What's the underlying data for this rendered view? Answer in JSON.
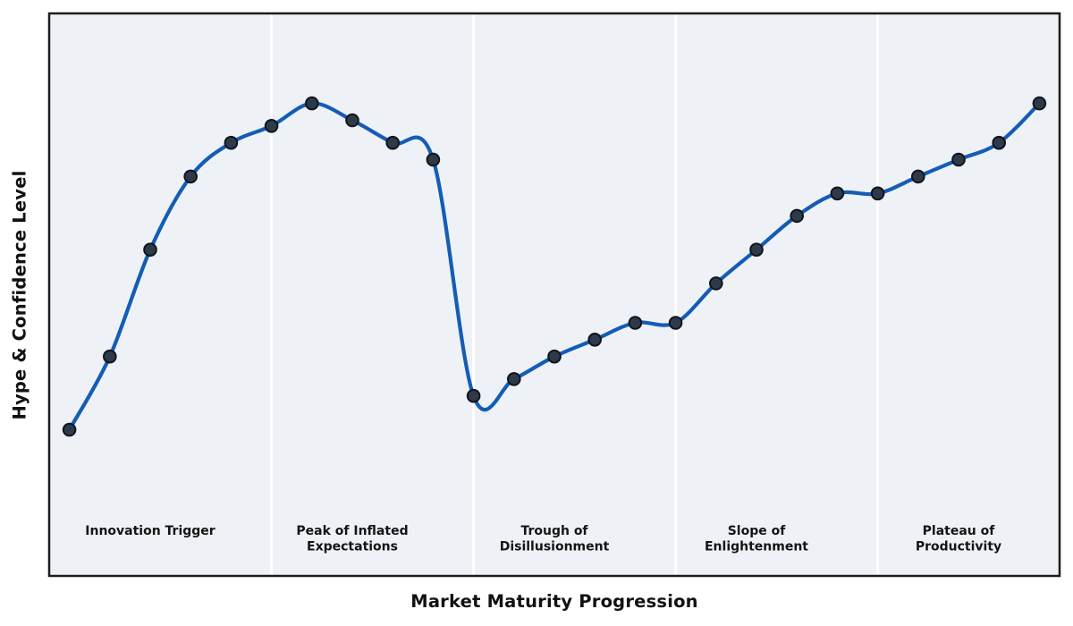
{
  "chart_data": {
    "type": "line",
    "title": "",
    "xlabel": "Market Maturity Progression",
    "ylabel": "Hype & Confidence Level",
    "x": [
      1,
      2,
      3,
      4,
      5,
      6,
      7,
      8,
      9,
      10,
      11,
      12,
      13,
      14,
      15,
      16,
      17,
      18,
      19,
      20,
      21,
      22,
      23,
      24,
      25
    ],
    "values": [
      26,
      39,
      58,
      71,
      77,
      80,
      84,
      81,
      77,
      74,
      32,
      35,
      39,
      42,
      45,
      45,
      52,
      58,
      64,
      68,
      68,
      71,
      74,
      77,
      84
    ],
    "xlim": [
      0.5,
      25.5
    ],
    "ylim": [
      0,
      100
    ],
    "grid": false,
    "smooth": true,
    "markers": true,
    "legend_position": "none",
    "tick_labels": "none",
    "phase_dividers_x": [
      6,
      11,
      16,
      21
    ],
    "phase_regions": [
      {
        "label": "Innovation Trigger",
        "label_lines": [
          "Innovation Trigger"
        ],
        "center_x": 3
      },
      {
        "label": "Peak of Inflated Expectations",
        "label_lines": [
          "Peak of Inflated",
          "Expectations"
        ],
        "center_x": 8
      },
      {
        "label": "Trough of Disillusionment",
        "label_lines": [
          "Trough of",
          "Disillusionment"
        ],
        "center_x": 13
      },
      {
        "label": "Slope of Enlightenment",
        "label_lines": [
          "Slope of",
          "Enlightenment"
        ],
        "center_x": 18
      },
      {
        "label": "Plateau of Productivity",
        "label_lines": [
          "Plateau of",
          "Productivity"
        ],
        "center_x": 23
      }
    ],
    "style": {
      "line_color": "#155cb5",
      "marker_fill": "#2e3a49",
      "marker_edge": "#10151c",
      "plot_bg": "#eef2f7",
      "figure_bg": "#ffffff",
      "border_color": "#1c1c1c",
      "divider_color": "#ffffff",
      "label_color": "#141414"
    }
  }
}
